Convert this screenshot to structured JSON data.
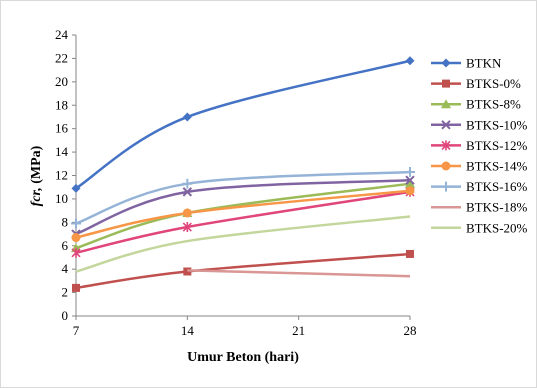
{
  "chart_data": {
    "type": "line",
    "title": "",
    "xlabel": "Umur Beton (hari)",
    "ylabel": "fcr, (MPa)",
    "ylabel_italic_part": "fcr,",
    "ylabel_rest": " (MPa)",
    "x": [
      7,
      14,
      28
    ],
    "xlim": [
      7,
      28
    ],
    "xticks": [
      7,
      14,
      21,
      28
    ],
    "ylim": [
      0,
      24
    ],
    "yticks": [
      0,
      2,
      4,
      6,
      8,
      10,
      12,
      14,
      16,
      18,
      20,
      22,
      24
    ],
    "grid": false,
    "legend_position": "right",
    "series": [
      {
        "name": "BTKN",
        "values": [
          10.9,
          17.0,
          21.8
        ],
        "color": "#4472C4",
        "marker": "diamond"
      },
      {
        "name": "BTKS-0%",
        "values": [
          2.4,
          3.8,
          5.3
        ],
        "color": "#C0504D",
        "marker": "square"
      },
      {
        "name": "BTKS-8%",
        "values": [
          5.8,
          8.8,
          11.3
        ],
        "color": "#9BBB59",
        "marker": "triangle"
      },
      {
        "name": "BTKS-10%",
        "values": [
          7.0,
          10.6,
          11.6
        ],
        "color": "#8064A2",
        "marker": "x"
      },
      {
        "name": "BTKS-12%",
        "values": [
          5.4,
          7.6,
          10.6
        ],
        "color": "#E0457B",
        "marker": "star"
      },
      {
        "name": "BTKS-14%",
        "values": [
          6.7,
          8.8,
          10.7
        ],
        "color": "#F79646",
        "marker": "circle"
      },
      {
        "name": "BTKS-16%",
        "values": [
          7.9,
          11.3,
          12.3
        ],
        "color": "#95B3D7",
        "marker": "plus"
      },
      {
        "name": "BTKS-18%",
        "values": [
          null,
          3.9,
          3.4
        ],
        "color": "#D99694",
        "marker": "none"
      },
      {
        "name": "BTKS-20%",
        "values": [
          3.8,
          6.4,
          8.5
        ],
        "color": "#C3D69B",
        "marker": "none"
      }
    ]
  }
}
